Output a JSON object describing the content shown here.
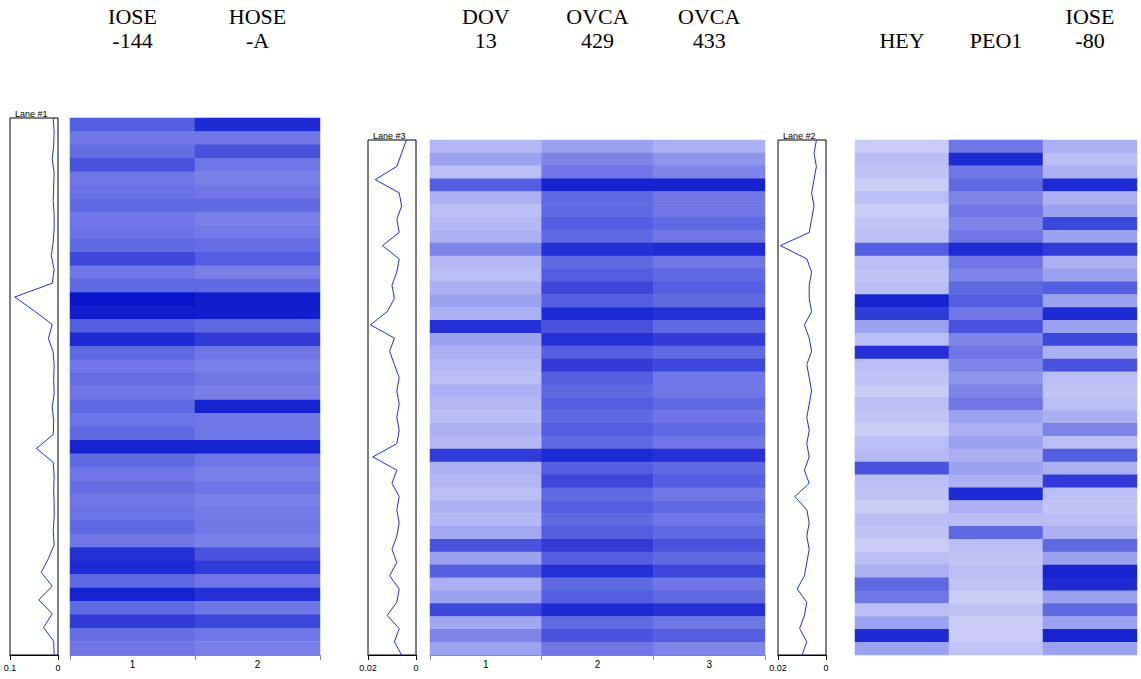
{
  "chart_data": [
    {
      "type": "heatmap",
      "profile_title": "Lane #1",
      "lanes": [
        "IOSE -144",
        "HOSE -A"
      ],
      "lane_numbers": [
        1,
        2
      ],
      "color_range": [
        0,
        1
      ],
      "cells": [
        [
          0.55,
          0.45,
          0.48,
          0.6,
          0.45,
          0.47,
          0.5,
          0.45,
          0.46,
          0.5,
          0.65,
          0.45,
          0.5,
          0.95,
          0.9,
          0.55,
          0.8,
          0.5,
          0.45,
          0.48,
          0.45,
          0.5,
          0.46,
          0.5,
          0.85,
          0.5,
          0.45,
          0.48,
          0.45,
          0.46,
          0.5,
          0.45,
          0.75,
          0.8,
          0.5,
          0.85,
          0.5,
          0.7,
          0.48,
          0.45
        ],
        [
          0.8,
          0.45,
          0.6,
          0.45,
          0.42,
          0.45,
          0.5,
          0.42,
          0.44,
          0.48,
          0.55,
          0.42,
          0.5,
          0.9,
          0.88,
          0.5,
          0.7,
          0.45,
          0.42,
          0.45,
          0.42,
          0.85,
          0.45,
          0.45,
          0.85,
          0.45,
          0.42,
          0.45,
          0.42,
          0.44,
          0.45,
          0.42,
          0.6,
          0.7,
          0.45,
          0.75,
          0.45,
          0.65,
          0.45,
          0.42
        ]
      ],
      "profile": {
        "xlim": [
          0,
          0.1
        ],
        "xticks": [
          0.1,
          0
        ],
        "values": [
          0.01,
          0.008,
          0.009,
          0.012,
          0.008,
          0.009,
          0.01,
          0.008,
          0.008,
          0.01,
          0.014,
          0.008,
          0.012,
          0.09,
          0.05,
          0.012,
          0.02,
          0.01,
          0.008,
          0.009,
          0.008,
          0.012,
          0.009,
          0.01,
          0.045,
          0.01,
          0.008,
          0.009,
          0.008,
          0.008,
          0.01,
          0.008,
          0.02,
          0.035,
          0.012,
          0.04,
          0.012,
          0.03,
          0.009,
          0.008
        ]
      }
    },
    {
      "type": "heatmap",
      "profile_title": "Lane #3",
      "lanes": [
        "DOV 13",
        "OVCA 429",
        "OVCA 433"
      ],
      "lane_numbers": [
        1,
        2,
        3
      ],
      "color_range": [
        0,
        1
      ],
      "cells": [
        [
          0.22,
          0.3,
          0.2,
          0.55,
          0.25,
          0.2,
          0.22,
          0.25,
          0.4,
          0.22,
          0.2,
          0.25,
          0.3,
          0.25,
          0.75,
          0.3,
          0.25,
          0.22,
          0.2,
          0.25,
          0.22,
          0.2,
          0.25,
          0.22,
          0.7,
          0.25,
          0.22,
          0.2,
          0.25,
          0.22,
          0.28,
          0.6,
          0.3,
          0.55,
          0.25,
          0.3,
          0.65,
          0.28,
          0.4,
          0.3
        ],
        [
          0.3,
          0.4,
          0.45,
          0.85,
          0.5,
          0.5,
          0.55,
          0.5,
          0.75,
          0.5,
          0.55,
          0.65,
          0.55,
          0.8,
          0.6,
          0.75,
          0.55,
          0.7,
          0.55,
          0.5,
          0.55,
          0.5,
          0.55,
          0.5,
          0.8,
          0.55,
          0.65,
          0.5,
          0.55,
          0.5,
          0.55,
          0.7,
          0.55,
          0.75,
          0.5,
          0.55,
          0.8,
          0.5,
          0.6,
          0.45
        ],
        [
          0.25,
          0.35,
          0.4,
          0.85,
          0.45,
          0.45,
          0.5,
          0.45,
          0.8,
          0.45,
          0.5,
          0.55,
          0.5,
          0.75,
          0.5,
          0.7,
          0.5,
          0.65,
          0.45,
          0.45,
          0.5,
          0.45,
          0.5,
          0.45,
          0.75,
          0.5,
          0.55,
          0.45,
          0.5,
          0.45,
          0.5,
          0.6,
          0.5,
          0.65,
          0.45,
          0.5,
          0.75,
          0.45,
          0.55,
          0.4
        ]
      ],
      "profile": {
        "xlim": [
          0,
          0.02
        ],
        "xticks": [
          0.02,
          0
        ],
        "values": [
          0.004,
          0.006,
          0.008,
          0.017,
          0.007,
          0.006,
          0.008,
          0.007,
          0.014,
          0.007,
          0.008,
          0.01,
          0.009,
          0.012,
          0.019,
          0.009,
          0.011,
          0.009,
          0.007,
          0.008,
          0.007,
          0.008,
          0.007,
          0.008,
          0.018,
          0.008,
          0.01,
          0.007,
          0.008,
          0.007,
          0.008,
          0.01,
          0.008,
          0.011,
          0.007,
          0.008,
          0.012,
          0.007,
          0.009,
          0.006
        ]
      }
    },
    {
      "type": "heatmap",
      "profile_title": "Lane #2",
      "lanes": [
        "HEY",
        "PEO1",
        "IOSE -80"
      ],
      "color_range": [
        0,
        1
      ],
      "cells": [
        [
          0.15,
          0.2,
          0.18,
          0.15,
          0.2,
          0.15,
          0.18,
          0.2,
          0.55,
          0.2,
          0.18,
          0.2,
          0.85,
          0.7,
          0.3,
          0.2,
          0.75,
          0.2,
          0.18,
          0.15,
          0.2,
          0.18,
          0.15,
          0.2,
          0.22,
          0.6,
          0.2,
          0.18,
          0.15,
          0.2,
          0.18,
          0.15,
          0.2,
          0.25,
          0.5,
          0.45,
          0.2,
          0.3,
          0.8,
          0.3
        ],
        [
          0.45,
          0.8,
          0.45,
          0.5,
          0.4,
          0.45,
          0.4,
          0.45,
          0.8,
          0.45,
          0.4,
          0.5,
          0.55,
          0.45,
          0.6,
          0.4,
          0.45,
          0.4,
          0.35,
          0.4,
          0.45,
          0.3,
          0.25,
          0.3,
          0.25,
          0.3,
          0.25,
          0.8,
          0.25,
          0.2,
          0.5,
          0.2,
          0.18,
          0.2,
          0.18,
          0.15,
          0.18,
          0.15,
          0.15,
          0.18
        ],
        [
          0.25,
          0.2,
          0.25,
          0.8,
          0.25,
          0.3,
          0.65,
          0.3,
          0.7,
          0.25,
          0.3,
          0.55,
          0.3,
          0.8,
          0.3,
          0.65,
          0.25,
          0.6,
          0.2,
          0.18,
          0.2,
          0.25,
          0.4,
          0.2,
          0.55,
          0.25,
          0.7,
          0.2,
          0.18,
          0.2,
          0.25,
          0.5,
          0.3,
          0.85,
          0.8,
          0.3,
          0.5,
          0.3,
          0.85,
          0.3
        ]
      ],
      "profile": {
        "xlim": [
          0,
          0.02
        ],
        "xticks": [
          0.02,
          0
        ],
        "values": [
          0.004,
          0.005,
          0.004,
          0.005,
          0.006,
          0.005,
          0.006,
          0.007,
          0.019,
          0.008,
          0.006,
          0.007,
          0.007,
          0.006,
          0.009,
          0.007,
          0.006,
          0.008,
          0.007,
          0.006,
          0.007,
          0.008,
          0.007,
          0.008,
          0.007,
          0.009,
          0.007,
          0.013,
          0.008,
          0.007,
          0.008,
          0.007,
          0.008,
          0.009,
          0.012,
          0.008,
          0.009,
          0.011,
          0.008,
          0.01
        ]
      }
    }
  ]
}
